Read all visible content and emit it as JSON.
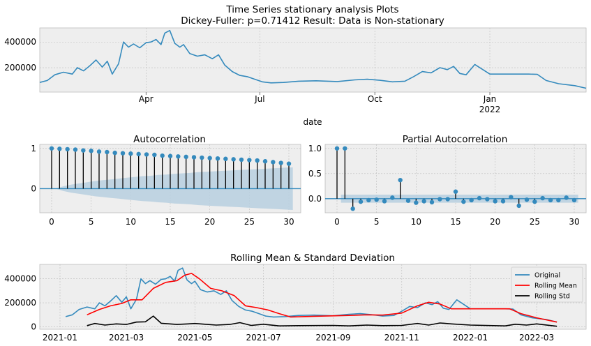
{
  "figure": {
    "title_line1": "Time Series stationary analysis Plots",
    "title_line2": "Dickey-Fuller: p=0.71412 Result: Data is Non-stationary"
  },
  "colors": {
    "series_blue": "#348ABD",
    "rolling_mean": "#FF0000",
    "rolling_std": "#000000",
    "axes_bg": "#EEEEEE",
    "grid": "#BCBCBC",
    "conf_band": "#BAD0E0"
  },
  "chart_data": [
    {
      "type": "line",
      "title": "",
      "xlabel": "date",
      "ylabel": "",
      "x_ticks": [
        "Apr",
        "Jul",
        "Oct",
        "Jan"
      ],
      "x_tick_sub": [
        "",
        "",
        "",
        "2022"
      ],
      "x_range": [
        "2021-01-06",
        "2022-03-19"
      ],
      "y_ticks": [
        200000,
        400000
      ],
      "y_tick_labels": [
        "200000",
        "400000"
      ],
      "ylim": [
        10000,
        510000
      ],
      "grid": true,
      "series": [
        {
          "x": [
            "2021-01-06",
            "2021-01-12",
            "2021-01-18",
            "2021-01-25",
            "2021-02-01",
            "2021-02-05",
            "2021-02-10",
            "2021-02-15",
            "2021-02-20",
            "2021-02-25",
            "2021-03-01",
            "2021-03-05",
            "2021-03-10",
            "2021-03-14",
            "2021-03-18",
            "2021-03-22",
            "2021-03-27",
            "2021-04-01",
            "2021-04-05",
            "2021-04-09",
            "2021-04-13",
            "2021-04-16",
            "2021-04-20",
            "2021-04-24",
            "2021-04-28",
            "2021-05-01",
            "2021-05-06",
            "2021-05-12",
            "2021-05-18",
            "2021-05-24",
            "2021-05-29",
            "2021-06-03",
            "2021-06-09",
            "2021-06-15",
            "2021-06-21",
            "2021-06-27",
            "2021-07-03",
            "2021-07-10",
            "2021-07-20",
            "2021-08-01",
            "2021-08-15",
            "2021-09-01",
            "2021-09-15",
            "2021-09-25",
            "2021-10-05",
            "2021-10-15",
            "2021-10-25",
            "2021-11-01",
            "2021-11-08",
            "2021-11-15",
            "2021-11-22",
            "2021-11-28",
            "2021-12-03",
            "2021-12-08",
            "2021-12-13",
            "2021-12-20",
            "2022-01-01",
            "2022-01-15",
            "2022-02-01",
            "2022-02-08",
            "2022-02-15",
            "2022-02-25",
            "2022-03-10",
            "2022-03-19"
          ],
          "y": [
            85000,
            100000,
            145000,
            165000,
            150000,
            200000,
            175000,
            215000,
            260000,
            205000,
            250000,
            150000,
            230000,
            400000,
            360000,
            385000,
            355000,
            395000,
            400000,
            420000,
            380000,
            470000,
            490000,
            390000,
            360000,
            380000,
            310000,
            290000,
            300000,
            270000,
            300000,
            220000,
            170000,
            140000,
            130000,
            110000,
            90000,
            82000,
            85000,
            95000,
            98000,
            92000,
            105000,
            110000,
            102000,
            90000,
            95000,
            130000,
            170000,
            160000,
            200000,
            185000,
            210000,
            155000,
            145000,
            225000,
            150000,
            150000,
            150000,
            148000,
            100000,
            75000,
            60000,
            40000
          ]
        }
      ]
    },
    {
      "type": "bar",
      "title": "Autocorrelation",
      "xlabel": "",
      "ylabel": "",
      "x_ticks": [
        0,
        5,
        10,
        15,
        20,
        25,
        30
      ],
      "xlim": [
        -1.5,
        31.5
      ],
      "y_ticks": [
        0,
        1
      ],
      "y_tick_labels": [
        "0",
        "1"
      ],
      "ylim": [
        -0.6,
        1.1
      ],
      "grid": true,
      "lags": [
        0,
        1,
        2,
        3,
        4,
        5,
        6,
        7,
        8,
        9,
        10,
        11,
        12,
        13,
        14,
        15,
        16,
        17,
        18,
        19,
        20,
        21,
        22,
        23,
        24,
        25,
        26,
        27,
        28,
        29,
        30
      ],
      "values": [
        1.0,
        0.99,
        0.98,
        0.97,
        0.95,
        0.94,
        0.92,
        0.91,
        0.89,
        0.88,
        0.87,
        0.86,
        0.85,
        0.84,
        0.82,
        0.81,
        0.8,
        0.79,
        0.78,
        0.77,
        0.76,
        0.75,
        0.74,
        0.73,
        0.72,
        0.71,
        0.7,
        0.68,
        0.66,
        0.64,
        0.62
      ],
      "confidence_upper": [
        0.0,
        0.06,
        0.1,
        0.13,
        0.16,
        0.19,
        0.21,
        0.23,
        0.25,
        0.27,
        0.29,
        0.31,
        0.32,
        0.34,
        0.35,
        0.37,
        0.38,
        0.39,
        0.41,
        0.42,
        0.43,
        0.44,
        0.45,
        0.46,
        0.47,
        0.48,
        0.49,
        0.5,
        0.51,
        0.52,
        0.53
      ]
    },
    {
      "type": "bar",
      "title": "Partial Autocorrelation",
      "xlabel": "",
      "ylabel": "",
      "x_ticks": [
        0,
        5,
        10,
        15,
        20,
        25,
        30
      ],
      "xlim": [
        -1.5,
        31.5
      ],
      "y_ticks": [
        0.0,
        0.5,
        1.0
      ],
      "y_tick_labels": [
        "0.0",
        "0.5",
        "1.0"
      ],
      "ylim": [
        -0.28,
        1.08
      ],
      "grid": true,
      "lags": [
        0,
        1,
        2,
        3,
        4,
        5,
        6,
        7,
        8,
        9,
        10,
        11,
        12,
        13,
        14,
        15,
        16,
        17,
        18,
        19,
        20,
        21,
        22,
        23,
        24,
        25,
        26,
        27,
        28,
        29,
        30
      ],
      "values": [
        1.0,
        1.0,
        -0.2,
        -0.06,
        -0.03,
        -0.02,
        -0.05,
        0.02,
        0.37,
        -0.04,
        -0.08,
        -0.05,
        -0.07,
        -0.01,
        -0.01,
        0.14,
        -0.06,
        -0.03,
        0.01,
        -0.01,
        -0.05,
        -0.05,
        0.03,
        -0.14,
        -0.02,
        -0.06,
        0.01,
        -0.03,
        -0.03,
        0.02,
        -0.03
      ],
      "confidence": 0.08
    },
    {
      "type": "line",
      "title": "Rolling Mean & Standard Deviation",
      "xlabel": "",
      "ylabel": "",
      "x_ticks": [
        "2021-01",
        "2021-03",
        "2021-05",
        "2021-07",
        "2021-09",
        "2021-11",
        "2022-01",
        "2022-03"
      ],
      "x_range": [
        "2020-12-14",
        "2022-04-14"
      ],
      "y_ticks": [
        0,
        200000,
        400000
      ],
      "y_tick_labels": [
        "0",
        "200000",
        "400000"
      ],
      "ylim": [
        -20000,
        520000
      ],
      "grid": true,
      "legend": "top-right",
      "series": [
        {
          "name": "Original",
          "x": [
            "2021-01-06",
            "2021-01-12",
            "2021-01-18",
            "2021-01-25",
            "2021-02-01",
            "2021-02-05",
            "2021-02-10",
            "2021-02-15",
            "2021-02-20",
            "2021-02-25",
            "2021-03-01",
            "2021-03-05",
            "2021-03-10",
            "2021-03-14",
            "2021-03-18",
            "2021-03-22",
            "2021-03-27",
            "2021-04-01",
            "2021-04-05",
            "2021-04-09",
            "2021-04-13",
            "2021-04-16",
            "2021-04-20",
            "2021-04-24",
            "2021-04-28",
            "2021-05-01",
            "2021-05-06",
            "2021-05-12",
            "2021-05-18",
            "2021-05-24",
            "2021-05-29",
            "2021-06-03",
            "2021-06-09",
            "2021-06-15",
            "2021-06-21",
            "2021-06-27",
            "2021-07-03",
            "2021-07-10",
            "2021-07-20",
            "2021-08-01",
            "2021-08-15",
            "2021-09-01",
            "2021-09-15",
            "2021-09-25",
            "2021-10-05",
            "2021-10-15",
            "2021-10-25",
            "2021-11-01",
            "2021-11-08",
            "2021-11-15",
            "2021-11-22",
            "2021-11-28",
            "2021-12-03",
            "2021-12-08",
            "2021-12-13",
            "2021-12-20",
            "2022-01-01",
            "2022-01-15",
            "2022-02-01",
            "2022-02-08",
            "2022-02-15",
            "2022-02-25",
            "2022-03-10",
            "2022-03-19"
          ],
          "y": [
            85000,
            100000,
            145000,
            165000,
            150000,
            200000,
            175000,
            215000,
            260000,
            205000,
            250000,
            150000,
            230000,
            400000,
            360000,
            385000,
            355000,
            395000,
            400000,
            420000,
            380000,
            470000,
            490000,
            390000,
            360000,
            380000,
            310000,
            290000,
            300000,
            270000,
            300000,
            220000,
            170000,
            140000,
            130000,
            110000,
            90000,
            82000,
            85000,
            95000,
            98000,
            92000,
            105000,
            110000,
            102000,
            90000,
            95000,
            130000,
            170000,
            160000,
            200000,
            185000,
            210000,
            155000,
            145000,
            225000,
            150000,
            150000,
            150000,
            148000,
            100000,
            75000,
            60000,
            40000
          ]
        },
        {
          "name": "Rolling Mean",
          "x": [
            "2021-01-25",
            "2021-02-05",
            "2021-02-15",
            "2021-02-25",
            "2021-03-05",
            "2021-03-15",
            "2021-03-25",
            "2021-04-05",
            "2021-04-15",
            "2021-04-22",
            "2021-04-28",
            "2021-05-05",
            "2021-05-15",
            "2021-05-25",
            "2021-06-05",
            "2021-06-15",
            "2021-06-25",
            "2021-07-05",
            "2021-07-15",
            "2021-07-25",
            "2021-08-15",
            "2021-09-15",
            "2021-10-01",
            "2021-10-15",
            "2021-11-01",
            "2021-11-15",
            "2021-11-25",
            "2021-12-05",
            "2021-12-15",
            "2022-01-01",
            "2022-01-20",
            "2022-02-05",
            "2022-02-15",
            "2022-03-01",
            "2022-03-19"
          ],
          "y": [
            100000,
            145000,
            175000,
            195000,
            225000,
            225000,
            320000,
            370000,
            385000,
            430000,
            445000,
            400000,
            320000,
            300000,
            260000,
            175000,
            160000,
            140000,
            110000,
            82000,
            88000,
            95000,
            100000,
            98000,
            115000,
            175000,
            205000,
            190000,
            150000,
            150000,
            150000,
            150000,
            110000,
            75000,
            40000
          ]
        },
        {
          "name": "Rolling Std",
          "x": [
            "2021-01-25",
            "2021-02-01",
            "2021-02-10",
            "2021-02-20",
            "2021-03-01",
            "2021-03-10",
            "2021-03-18",
            "2021-03-25",
            "2021-04-01",
            "2021-04-15",
            "2021-04-25",
            "2021-05-01",
            "2021-05-10",
            "2021-05-20",
            "2021-06-01",
            "2021-06-10",
            "2021-06-20",
            "2021-07-01",
            "2021-07-15",
            "2021-08-01",
            "2021-09-01",
            "2021-09-15",
            "2021-10-01",
            "2021-10-15",
            "2021-11-01",
            "2021-11-15",
            "2021-11-25",
            "2021-12-05",
            "2021-12-15",
            "2022-01-01",
            "2022-02-01",
            "2022-02-10",
            "2022-02-20",
            "2022-03-01",
            "2022-03-19"
          ],
          "y": [
            10000,
            28000,
            15000,
            25000,
            20000,
            40000,
            42000,
            90000,
            30000,
            20000,
            25000,
            28000,
            22000,
            15000,
            20000,
            35000,
            12000,
            22000,
            8000,
            10000,
            12000,
            8000,
            15000,
            10000,
            12000,
            28000,
            15000,
            32000,
            25000,
            15000,
            8000,
            22000,
            15000,
            25000,
            5000
          ]
        }
      ]
    }
  ]
}
